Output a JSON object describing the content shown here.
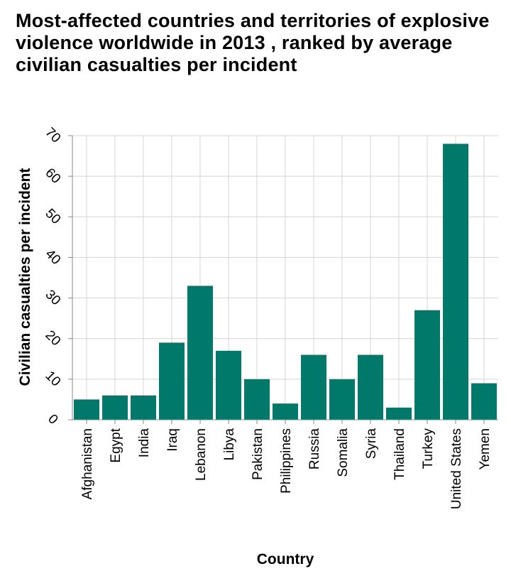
{
  "chart_data": {
    "type": "bar",
    "title": "Most-affected countries and territories of explosive violence worldwide in 2013 , ranked by average civilian casualties per incident",
    "xlabel": "Country",
    "ylabel": "Civilian casualties per incident",
    "ylim": [
      0,
      70
    ],
    "yticks": [
      0,
      10,
      20,
      30,
      40,
      50,
      60,
      70
    ],
    "grid": true,
    "bar_color": "#00786a",
    "categories": [
      "Afghanistan",
      "Egypt",
      "India",
      "Iraq",
      "Lebanon",
      "Libya",
      "Pakistan",
      "Philippines",
      "Russia",
      "Somalia",
      "Syria",
      "Thailand",
      "Turkey",
      "United States",
      "Yemen"
    ],
    "values": [
      5,
      6,
      6,
      19,
      33,
      17,
      10,
      4,
      16,
      10,
      16,
      3,
      27,
      68,
      9
    ]
  }
}
